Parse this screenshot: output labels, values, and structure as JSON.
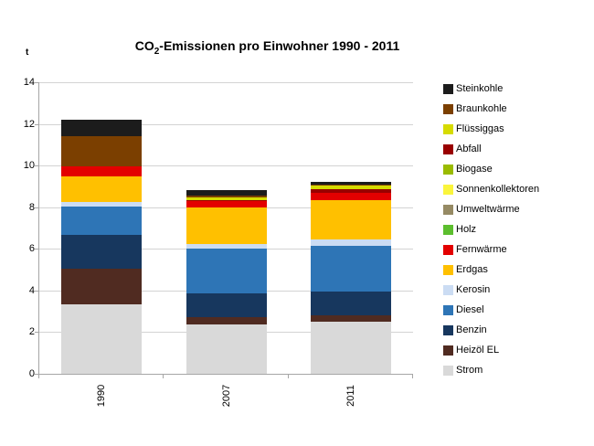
{
  "colors": {
    "background": "#FFFFFF",
    "gridline": "#D3D3D3",
    "axis": "#A6A6A6",
    "text": "#000000"
  },
  "chart_data": {
    "type": "bar",
    "stacked": true,
    "title": "CO2-Emissionen pro Einwohner 1990 - 2011",
    "title_parts": {
      "prefix": "CO",
      "sub": "2",
      "suffix": "-Emissionen pro Einwohner 1990 - 2011"
    },
    "ylabel": "t",
    "xlabel": "",
    "ylim": [
      0,
      14
    ],
    "yticks": [
      0,
      2,
      4,
      6,
      8,
      10,
      12,
      14
    ],
    "grid": true,
    "legend_position": "right",
    "legend_order": "top-to-bottom is reverse of stacking order",
    "categories": [
      "1990",
      "2007",
      "2011"
    ],
    "category_totals": [
      12.2,
      8.8,
      9.2
    ],
    "series": [
      {
        "name": "Strom",
        "key": "strom",
        "color": "#D9D9D9",
        "values": [
          3.35,
          2.35,
          2.5
        ]
      },
      {
        "name": "Heizöl EL",
        "key": "heizoel-el",
        "color": "#502B21",
        "values": [
          1.7,
          0.35,
          0.3
        ]
      },
      {
        "name": "Benzin",
        "key": "benzin",
        "color": "#17375E",
        "values": [
          1.6,
          1.15,
          1.15
        ]
      },
      {
        "name": "Diesel",
        "key": "diesel",
        "color": "#2E75B6",
        "values": [
          1.4,
          2.15,
          2.2
        ]
      },
      {
        "name": "Kerosin",
        "key": "kerosin",
        "color": "#CBDCF3",
        "values": [
          0.2,
          0.25,
          0.3
        ]
      },
      {
        "name": "Erdgas",
        "key": "erdgas",
        "color": "#FFC000",
        "values": [
          1.25,
          1.75,
          1.9
        ]
      },
      {
        "name": "Fernwärme",
        "key": "fernwaerme",
        "color": "#E30000",
        "values": [
          0.45,
          0.3,
          0.35
        ]
      },
      {
        "name": "Holz",
        "key": "holz",
        "color": "#5CBE2E",
        "values": [
          0,
          0,
          0
        ]
      },
      {
        "name": "Umweltwärme",
        "key": "umweltwaerme",
        "color": "#968A64",
        "values": [
          0,
          0,
          0
        ]
      },
      {
        "name": "Sonnenkollektoren",
        "key": "sonnenkollektoren",
        "color": "#FAF53C",
        "values": [
          0,
          0,
          0
        ]
      },
      {
        "name": "Biogase",
        "key": "biogase",
        "color": "#9ABB00",
        "values": [
          0,
          0,
          0
        ]
      },
      {
        "name": "Abfall",
        "key": "abfall",
        "color": "#990000",
        "values": [
          0,
          0.05,
          0.15
        ]
      },
      {
        "name": "Flüssiggas",
        "key": "fluessiggas",
        "color": "#D6DB00",
        "values": [
          0,
          0.1,
          0.2
        ]
      },
      {
        "name": "Braunkohle",
        "key": "braunkohle",
        "color": "#7B3F00",
        "values": [
          1.45,
          0.1,
          0.05
        ]
      },
      {
        "name": "Steinkohle",
        "key": "steinkohle",
        "color": "#1C1C1C",
        "values": [
          0.8,
          0.25,
          0.1
        ]
      }
    ]
  }
}
